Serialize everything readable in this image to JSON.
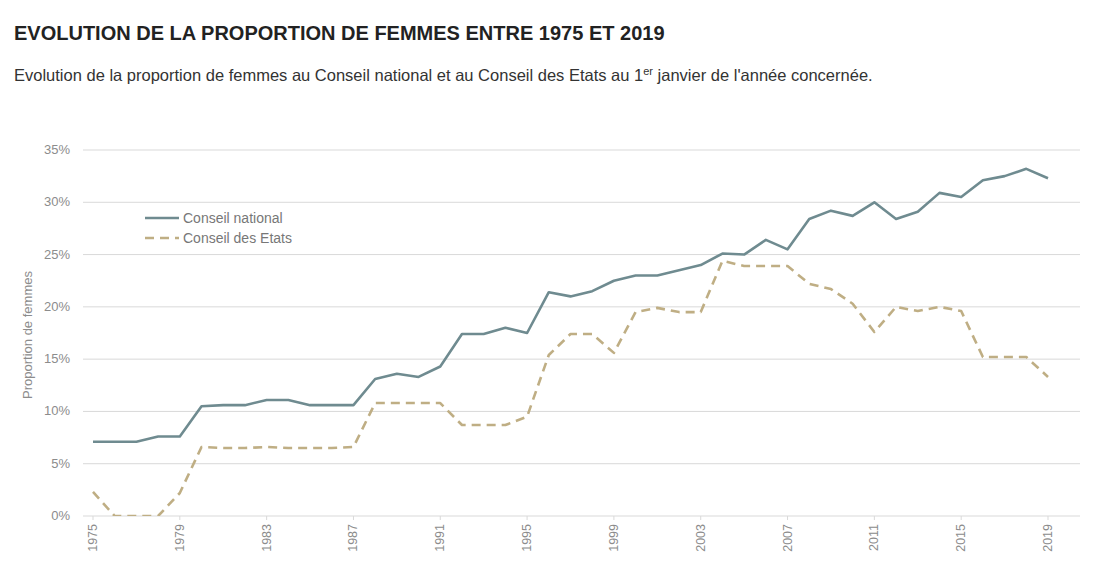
{
  "chart_data": {
    "type": "line",
    "title": "EVOLUTION DE LA PROPORTION DE FEMMES ENTRE 1975 ET 2019",
    "subtitle": "Evolution de la proportion de femmes au Conseil national et au Conseil des Etats au 1er janvier de l'année concernée.",
    "y_label": "Proportion de femmes",
    "x": [
      1975,
      1976,
      1977,
      1978,
      1979,
      1980,
      1981,
      1982,
      1983,
      1984,
      1985,
      1986,
      1987,
      1988,
      1989,
      1990,
      1991,
      1992,
      1993,
      1994,
      1995,
      1996,
      1997,
      1998,
      1999,
      2000,
      2001,
      2002,
      2003,
      2004,
      2005,
      2006,
      2007,
      2008,
      2009,
      2010,
      2011,
      2012,
      2013,
      2014,
      2015,
      2016,
      2017,
      2018,
      2019
    ],
    "series": [
      {
        "name": "Conseil national",
        "color": "#6f8b90",
        "line_style": "solid",
        "values": [
          7.1,
          7.1,
          7.1,
          7.6,
          7.6,
          10.5,
          10.6,
          10.6,
          11.1,
          11.1,
          10.6,
          10.6,
          10.6,
          13.1,
          13.6,
          13.3,
          14.3,
          17.4,
          17.4,
          18.0,
          17.5,
          21.4,
          21.0,
          21.5,
          22.5,
          23.0,
          23.0,
          23.5,
          24.0,
          25.1,
          25.0,
          26.4,
          25.5,
          28.4,
          29.2,
          28.7,
          30.0,
          28.4,
          29.1,
          30.9,
          30.5,
          32.1,
          32.5,
          33.2,
          32.3
        ]
      },
      {
        "name": "Conseil des Etats",
        "color": "#bfae84",
        "line_style": "dashed",
        "values": [
          2.3,
          0,
          0,
          0,
          2.2,
          6.6,
          6.5,
          6.5,
          6.6,
          6.5,
          6.5,
          6.5,
          6.6,
          10.8,
          10.8,
          10.8,
          10.8,
          8.7,
          8.7,
          8.7,
          9.5,
          15.4,
          17.4,
          17.4,
          15.6,
          19.5,
          19.9,
          19.5,
          19.5,
          24.4,
          23.9,
          23.9,
          23.9,
          22.2,
          21.7,
          20.3,
          17.6,
          20.0,
          19.6,
          20.0,
          19.6,
          15.2,
          15.2,
          15.2,
          13.3
        ]
      }
    ],
    "xlim": [
      1975,
      2019
    ],
    "xticks": [
      1975,
      1979,
      1983,
      1987,
      1991,
      1995,
      1999,
      2003,
      2007,
      2011,
      2015,
      2019
    ],
    "ylim": [
      0,
      35
    ],
    "yticks": [
      {
        "value": 0,
        "label": "0%"
      },
      {
        "value": 5,
        "label": "5%"
      },
      {
        "value": 10,
        "label": "10%"
      },
      {
        "value": 15,
        "label": "15%"
      },
      {
        "value": 20,
        "label": "20%"
      },
      {
        "value": 25,
        "label": "25%"
      },
      {
        "value": 30,
        "label": "30%"
      },
      {
        "value": 35,
        "label": "35%"
      }
    ],
    "grid": true,
    "legend": "upper left"
  }
}
